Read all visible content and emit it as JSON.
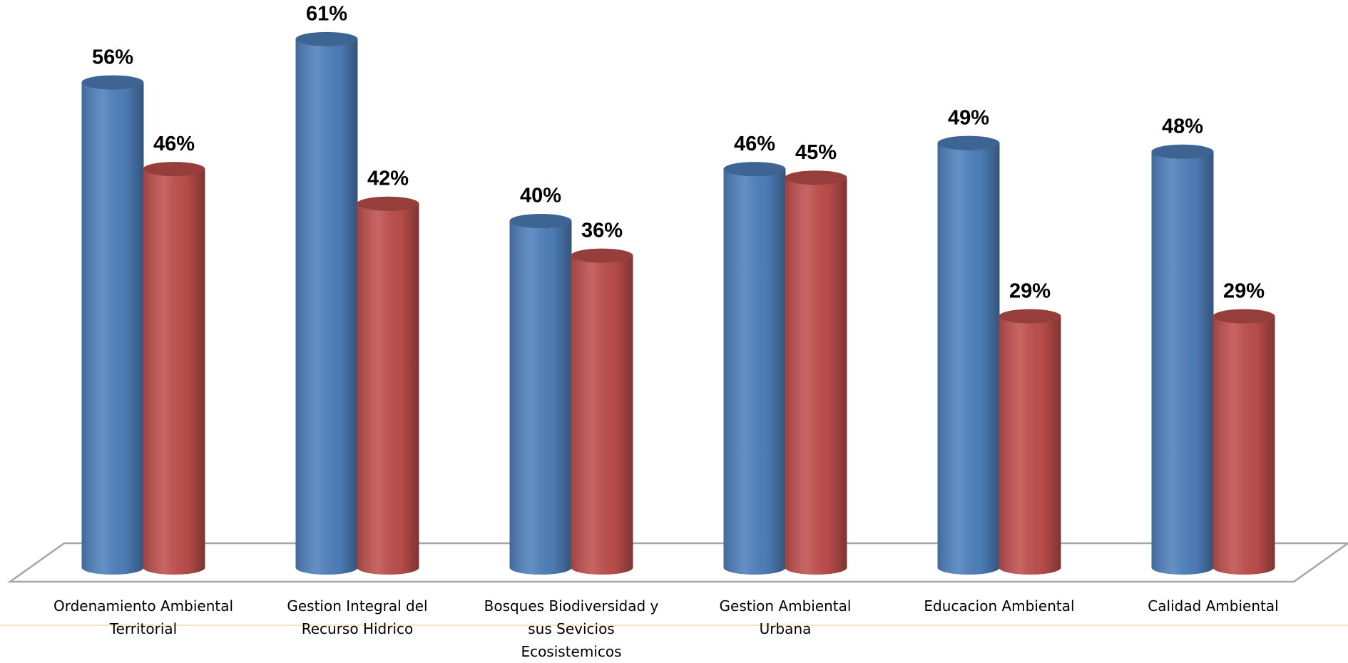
{
  "chart_data": {
    "type": "bar",
    "categories": [
      "Ordenamiento Ambiental Territorial",
      "Gestion Integral del Recurso Hidrico",
      "Bosques Biodiversidad y sus Sevicios Ecosistemicos",
      "Gestion Ambiental Urbana",
      "Educacion Ambiental",
      "Calidad Ambiental"
    ],
    "series": [
      {
        "color": "#4f81bd",
        "values": [
          56,
          61,
          40,
          46,
          49,
          48
        ],
        "value_labels": [
          "56%",
          "61%",
          "40%",
          "46%",
          "49%",
          "48%"
        ]
      },
      {
        "color": "#c0504d",
        "values": [
          46,
          42,
          36,
          45,
          29,
          29
        ],
        "value_labels": [
          "46%",
          "42%",
          "36%",
          "45%",
          "29%",
          "29%"
        ]
      }
    ]
  }
}
